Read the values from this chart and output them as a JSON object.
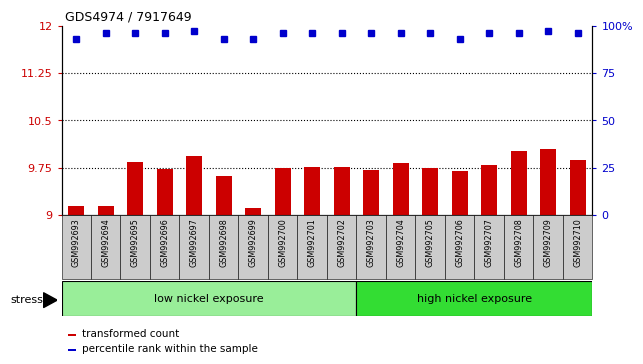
{
  "title": "GDS4974 / 7917649",
  "samples": [
    "GSM992693",
    "GSM992694",
    "GSM992695",
    "GSM992696",
    "GSM992697",
    "GSM992698",
    "GSM992699",
    "GSM992700",
    "GSM992701",
    "GSM992702",
    "GSM992703",
    "GSM992704",
    "GSM992705",
    "GSM992706",
    "GSM992707",
    "GSM992708",
    "GSM992709",
    "GSM992710"
  ],
  "bar_values": [
    9.15,
    9.15,
    9.85,
    9.73,
    9.93,
    9.62,
    9.12,
    9.75,
    9.76,
    9.76,
    9.71,
    9.82,
    9.74,
    9.7,
    9.8,
    10.02,
    10.05,
    9.88
  ],
  "dot_values_pct": [
    93,
    96,
    96,
    96,
    97,
    93,
    93,
    96,
    96,
    96,
    96,
    96,
    96,
    93,
    96,
    96,
    97,
    96
  ],
  "bar_color": "#cc0000",
  "dot_color": "#0000cc",
  "ylim_left": [
    9.0,
    12.0
  ],
  "ylim_right": [
    0,
    100
  ],
  "yticks_left": [
    9.0,
    9.75,
    10.5,
    11.25,
    12.0
  ],
  "ytick_labels_left": [
    "9",
    "9.75",
    "10.5",
    "11.25",
    "12"
  ],
  "yticks_right": [
    0,
    25,
    50,
    75,
    100
  ],
  "ytick_labels_right": [
    "0",
    "25",
    "50",
    "75",
    "100%"
  ],
  "hlines": [
    9.75,
    10.5,
    11.25
  ],
  "low_count": 10,
  "low_label": "low nickel exposure",
  "high_label": "high nickel exposure",
  "stress_label": "stress",
  "low_color": "#99ee99",
  "high_color": "#33dd33",
  "legend_bar_label": "transformed count",
  "legend_dot_label": "percentile rank within the sample",
  "tick_area_color": "#cccccc"
}
